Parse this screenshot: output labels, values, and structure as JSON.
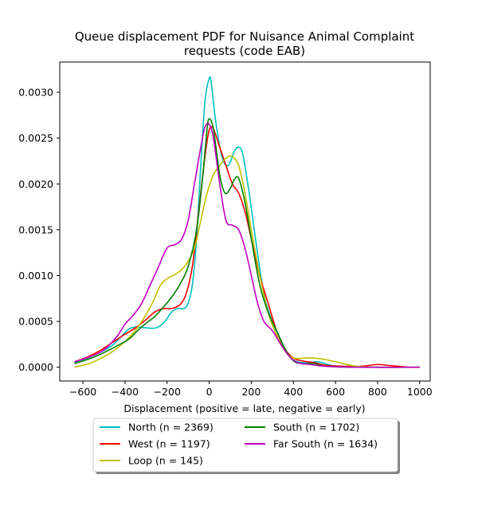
{
  "chart_data": {
    "type": "line",
    "title_lines": [
      "Queue displacement PDF for Nuisance Animal Complaint",
      "requests (code EAB)"
    ],
    "xlabel": "Displacement (positive = late, negative = early)",
    "ylabel": "",
    "xlim": [
      -710,
      1050
    ],
    "ylim": [
      -0.00015,
      0.00333
    ],
    "xticks": [
      -600,
      -400,
      -200,
      0,
      200,
      400,
      600,
      800,
      1000
    ],
    "yticks": [
      0.0,
      0.0005,
      0.001,
      0.0015,
      0.002,
      0.0025,
      0.003
    ],
    "ytick_labels": [
      "0.0000",
      "0.0005",
      "0.0010",
      "0.0015",
      "0.0020",
      "0.0025",
      "0.0030"
    ],
    "grid": false,
    "legend_placement": "below plot, two columns",
    "series": [
      {
        "name": "North (n = 2369)",
        "color": "#00bfbf",
        "points": [
          [
            -640,
            5e-05
          ],
          [
            -580,
            0.0001
          ],
          [
            -520,
            0.00016
          ],
          [
            -460,
            0.00024
          ],
          [
            -420,
            0.00033
          ],
          [
            -380,
            0.00042
          ],
          [
            -340,
            0.00044
          ],
          [
            -300,
            0.00043
          ],
          [
            -250,
            0.00043
          ],
          [
            -210,
            0.0005
          ],
          [
            -180,
            0.0006
          ],
          [
            -150,
            0.00064
          ],
          [
            -120,
            0.00064
          ],
          [
            -100,
            0.0007
          ],
          [
            -80,
            0.0009
          ],
          [
            -60,
            0.0014
          ],
          [
            -40,
            0.0022
          ],
          [
            -20,
            0.0029
          ],
          [
            0,
            0.00315
          ],
          [
            10,
            0.0031
          ],
          [
            30,
            0.0027
          ],
          [
            60,
            0.0023
          ],
          [
            90,
            0.0022
          ],
          [
            120,
            0.00236
          ],
          [
            140,
            0.0024
          ],
          [
            160,
            0.00232
          ],
          [
            190,
            0.0019
          ],
          [
            220,
            0.0014
          ],
          [
            260,
            0.0008
          ],
          [
            300,
            0.0005
          ],
          [
            340,
            0.0003
          ],
          [
            380,
            0.00012
          ],
          [
            420,
            6e-05
          ],
          [
            470,
            5e-05
          ],
          [
            520,
            6e-05
          ],
          [
            580,
            2e-05
          ],
          [
            650,
            1e-05
          ],
          [
            800,
            0.0
          ],
          [
            1000,
            0.0
          ]
        ]
      },
      {
        "name": "West (n = 1197)",
        "color": "#ff0000",
        "points": [
          [
            -640,
            6e-05
          ],
          [
            -580,
            0.00011
          ],
          [
            -520,
            0.00018
          ],
          [
            -460,
            0.00027
          ],
          [
            -400,
            0.00036
          ],
          [
            -350,
            0.00043
          ],
          [
            -300,
            0.00052
          ],
          [
            -260,
            0.0006
          ],
          [
            -220,
            0.00064
          ],
          [
            -180,
            0.00064
          ],
          [
            -140,
            0.00068
          ],
          [
            -110,
            0.0008
          ],
          [
            -80,
            0.0011
          ],
          [
            -50,
            0.0017
          ],
          [
            -20,
            0.0023
          ],
          [
            0,
            0.00259
          ],
          [
            20,
            0.0026
          ],
          [
            50,
            0.0024
          ],
          [
            80,
            0.0022
          ],
          [
            110,
            0.002
          ],
          [
            140,
            0.0019
          ],
          [
            170,
            0.0017
          ],
          [
            200,
            0.0014
          ],
          [
            240,
            0.001
          ],
          [
            280,
            0.0007
          ],
          [
            320,
            0.0004
          ],
          [
            360,
            0.0002
          ],
          [
            400,
            0.0001
          ],
          [
            440,
            7e-05
          ],
          [
            500,
            5e-05
          ],
          [
            560,
            2e-05
          ],
          [
            650,
            1e-05
          ],
          [
            720,
            1e-05
          ],
          [
            800,
            3e-05
          ],
          [
            850,
            2e-05
          ],
          [
            950,
            0.0
          ],
          [
            1000,
            0.0
          ]
        ]
      },
      {
        "name": "Loop (n = 145)",
        "color": "#bfbf00",
        "points": [
          [
            -640,
            0.0
          ],
          [
            -560,
            5e-05
          ],
          [
            -480,
            0.00014
          ],
          [
            -420,
            0.00024
          ],
          [
            -370,
            0.00035
          ],
          [
            -320,
            0.0005
          ],
          [
            -270,
            0.0007
          ],
          [
            -230,
            0.0009
          ],
          [
            -190,
            0.00098
          ],
          [
            -150,
            0.00103
          ],
          [
            -110,
            0.00112
          ],
          [
            -70,
            0.0013
          ],
          [
            -40,
            0.0016
          ],
          [
            -10,
            0.0019
          ],
          [
            20,
            0.0021
          ],
          [
            50,
            0.0022
          ],
          [
            80,
            0.00228
          ],
          [
            110,
            0.0023
          ],
          [
            140,
            0.0022
          ],
          [
            170,
            0.0019
          ],
          [
            200,
            0.0015
          ],
          [
            240,
            0.001
          ],
          [
            280,
            0.0006
          ],
          [
            320,
            0.00035
          ],
          [
            360,
            0.00018
          ],
          [
            400,
            0.0001
          ],
          [
            450,
            0.0001
          ],
          [
            500,
            0.0001
          ],
          [
            560,
            8e-05
          ],
          [
            620,
            5e-05
          ],
          [
            700,
            1e-05
          ],
          [
            800,
            0.0
          ],
          [
            1000,
            0.0
          ]
        ]
      },
      {
        "name": "South (n = 1702)",
        "color": "#008000",
        "points": [
          [
            -640,
            4e-05
          ],
          [
            -560,
            0.0001
          ],
          [
            -500,
            0.00016
          ],
          [
            -440,
            0.00023
          ],
          [
            -380,
            0.00031
          ],
          [
            -340,
            0.0004
          ],
          [
            -300,
            0.00048
          ],
          [
            -260,
            0.00055
          ],
          [
            -220,
            0.00065
          ],
          [
            -180,
            0.00076
          ],
          [
            -140,
            0.0009
          ],
          [
            -100,
            0.0011
          ],
          [
            -60,
            0.0015
          ],
          [
            -30,
            0.0021
          ],
          [
            -10,
            0.0026
          ],
          [
            0,
            0.00271
          ],
          [
            20,
            0.0026
          ],
          [
            50,
            0.0021
          ],
          [
            75,
            0.0019
          ],
          [
            100,
            0.00195
          ],
          [
            120,
            0.00205
          ],
          [
            140,
            0.00206
          ],
          [
            170,
            0.0018
          ],
          [
            200,
            0.0014
          ],
          [
            240,
            0.0009
          ],
          [
            280,
            0.0006
          ],
          [
            320,
            0.0004
          ],
          [
            360,
            0.0002
          ],
          [
            400,
            7e-05
          ],
          [
            440,
            4e-05
          ],
          [
            500,
            4e-05
          ],
          [
            560,
            1e-05
          ],
          [
            700,
            0.0
          ],
          [
            1000,
            0.0
          ]
        ]
      },
      {
        "name": "Far South (n = 1634)",
        "color": "#bf00bf",
        "points": [
          [
            -640,
            6e-05
          ],
          [
            -560,
            0.00012
          ],
          [
            -500,
            0.00019
          ],
          [
            -440,
            0.00033
          ],
          [
            -400,
            0.00047
          ],
          [
            -360,
            0.00057
          ],
          [
            -320,
            0.0007
          ],
          [
            -280,
            0.0009
          ],
          [
            -240,
            0.0011
          ],
          [
            -200,
            0.0013
          ],
          [
            -160,
            0.00134
          ],
          [
            -130,
            0.0014
          ],
          [
            -100,
            0.0016
          ],
          [
            -70,
            0.002
          ],
          [
            -40,
            0.0024
          ],
          [
            -20,
            0.00262
          ],
          [
            0,
            0.00265
          ],
          [
            20,
            0.0025
          ],
          [
            50,
            0.002
          ],
          [
            80,
            0.0016
          ],
          [
            110,
            0.00155
          ],
          [
            140,
            0.0015
          ],
          [
            170,
            0.0013
          ],
          [
            200,
            0.001
          ],
          [
            230,
            0.0007
          ],
          [
            260,
            0.0005
          ],
          [
            300,
            0.0004
          ],
          [
            340,
            0.00025
          ],
          [
            380,
            0.00012
          ],
          [
            420,
            5e-05
          ],
          [
            480,
            3e-05
          ],
          [
            560,
            1e-05
          ],
          [
            700,
            0.0
          ],
          [
            1000,
            0.0
          ]
        ]
      }
    ],
    "legend": [
      {
        "label": "North (n = 2369)",
        "series": 0
      },
      {
        "label": "South (n = 1702)",
        "series": 3
      },
      {
        "label": "West (n = 1197)",
        "series": 1
      },
      {
        "label": "Far South (n = 1634)",
        "series": 4
      },
      {
        "label": "Loop (n = 145)",
        "series": 2
      }
    ]
  }
}
